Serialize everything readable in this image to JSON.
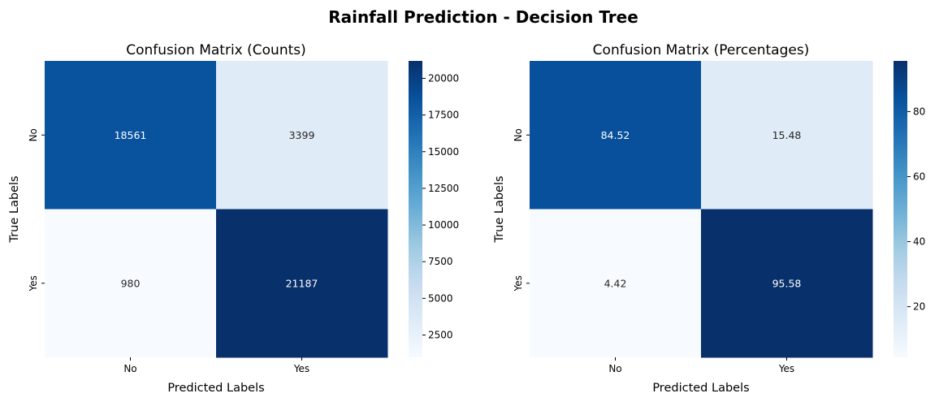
{
  "suptitle": "Rainfall Prediction - Decision Tree",
  "chart_data": [
    {
      "type": "heatmap",
      "title": "Confusion Matrix (Counts)",
      "xlabel": "Predicted Labels",
      "ylabel": "True Labels",
      "x_categories": [
        "No",
        "Yes"
      ],
      "y_categories": [
        "No",
        "Yes"
      ],
      "values": [
        [
          18561,
          3399
        ],
        [
          980,
          21187
        ]
      ],
      "annotations": [
        [
          "18561",
          "3399"
        ],
        [
          "980",
          "21187"
        ]
      ],
      "colormap": "Blues",
      "colorbar": {
        "range": [
          980,
          21187
        ],
        "ticks": [
          2500,
          5000,
          7500,
          10000,
          12500,
          15000,
          17500,
          20000
        ],
        "tick_labels": [
          "2500",
          "5000",
          "7500",
          "10000",
          "12500",
          "15000",
          "17500",
          "20000"
        ]
      }
    },
    {
      "type": "heatmap",
      "title": "Confusion Matrix (Percentages)",
      "xlabel": "Predicted Labels",
      "ylabel": "True Labels",
      "x_categories": [
        "No",
        "Yes"
      ],
      "y_categories": [
        "No",
        "Yes"
      ],
      "values": [
        [
          84.52,
          15.48
        ],
        [
          4.42,
          95.58
        ]
      ],
      "annotations": [
        [
          "84.52",
          "15.48"
        ],
        [
          "4.42",
          "95.58"
        ]
      ],
      "colormap": "Blues",
      "colorbar": {
        "range": [
          4.42,
          95.58
        ],
        "ticks": [
          20,
          40,
          60,
          80
        ],
        "tick_labels": [
          "20",
          "40",
          "60",
          "80"
        ]
      }
    }
  ]
}
